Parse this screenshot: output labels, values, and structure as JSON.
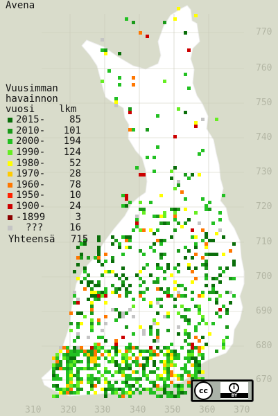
{
  "title": "Avena",
  "legend": {
    "header": [
      "Vuusimman",
      "havainnon",
      "vuosi"
    ],
    "count_header": "lkm",
    "rows": [
      {
        "label": "2015-",
        "count": "85",
        "color": "#0a6e0a"
      },
      {
        "label": "2010-",
        "count": "101",
        "color": "#1a9a1a"
      },
      {
        "label": "2000-",
        "count": "194",
        "color": "#22c022"
      },
      {
        "label": "1990-",
        "count": "124",
        "color": "#66ee22"
      },
      {
        "label": "1980-",
        "count": "52",
        "color": "#ffff00"
      },
      {
        "label": "1970-",
        "count": "28",
        "color": "#ffcc00"
      },
      {
        "label": "1960-",
        "count": "78",
        "color": "#ff7700"
      },
      {
        "label": "1950-",
        "count": "10",
        "color": "#ff2200"
      },
      {
        "label": "1900-",
        "count": "24",
        "color": "#cc0000"
      },
      {
        "label": "-1899",
        "count": "3",
        "color": "#8b0000"
      },
      {
        "label": "???",
        "count": "16",
        "color": "#c4c4c4"
      }
    ],
    "total_label": "Yhteensä",
    "total_count": "715"
  },
  "grid": {
    "lat_labels": [
      "770",
      "760",
      "750",
      "740",
      "730",
      "720",
      "710",
      "700",
      "690",
      "680",
      "670"
    ],
    "lon_labels": [
      "310",
      "320",
      "330",
      "340",
      "350",
      "360",
      "370"
    ]
  },
  "license": {
    "cc": "cc",
    "by": "BY"
  },
  "colors": {
    "background": "#d9dccb",
    "land": "#ffffff",
    "grid_text": "#b3b6a4"
  }
}
